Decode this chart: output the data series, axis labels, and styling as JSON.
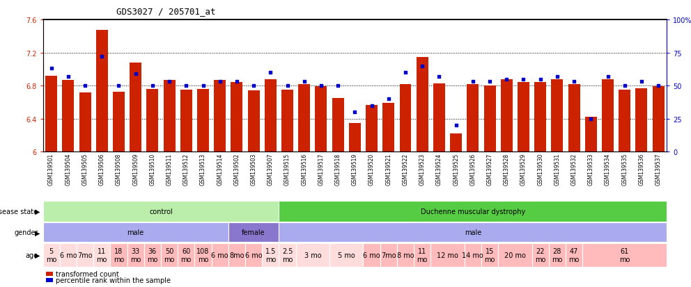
{
  "title": "GDS3027 / 205701_at",
  "samples": [
    "GSM139501",
    "GSM139504",
    "GSM139505",
    "GSM139506",
    "GSM139508",
    "GSM139509",
    "GSM139510",
    "GSM139511",
    "GSM139512",
    "GSM139513",
    "GSM139514",
    "GSM139502",
    "GSM139503",
    "GSM139507",
    "GSM139515",
    "GSM139516",
    "GSM139517",
    "GSM139518",
    "GSM139519",
    "GSM139520",
    "GSM139521",
    "GSM139522",
    "GSM139523",
    "GSM139524",
    "GSM139525",
    "GSM139526",
    "GSM139527",
    "GSM139528",
    "GSM139529",
    "GSM139530",
    "GSM139531",
    "GSM139532",
    "GSM139533",
    "GSM139534",
    "GSM139535",
    "GSM139536",
    "GSM139537"
  ],
  "bar_values": [
    6.92,
    6.87,
    6.72,
    7.47,
    6.73,
    7.08,
    6.76,
    6.87,
    6.75,
    6.76,
    6.87,
    6.84,
    6.74,
    6.88,
    6.75,
    6.82,
    6.79,
    6.65,
    6.35,
    6.57,
    6.59,
    6.82,
    7.15,
    6.83,
    6.22,
    6.82,
    6.8,
    6.88,
    6.84,
    6.84,
    6.88,
    6.82,
    6.42,
    6.88,
    6.75,
    6.77,
    6.79
  ],
  "percentile_values": [
    63,
    57,
    50,
    72,
    50,
    59,
    50,
    53,
    50,
    50,
    53,
    53,
    50,
    60,
    50,
    53,
    50,
    50,
    30,
    35,
    40,
    60,
    65,
    57,
    20,
    53,
    53,
    55,
    55,
    55,
    57,
    53,
    25,
    57,
    50,
    53,
    50
  ],
  "ylim": [
    6.0,
    7.6
  ],
  "yticks": [
    6.0,
    6.4,
    6.8,
    7.2,
    7.6
  ],
  "ytick_labels": [
    "6",
    "6.4",
    "6.8",
    "7.2",
    "7.6"
  ],
  "right_yticks": [
    0,
    25,
    50,
    75,
    100
  ],
  "right_ytick_labels": [
    "0",
    "25",
    "50",
    "75",
    "100%"
  ],
  "bar_color": "#cc2200",
  "dot_color": "#0000cc",
  "bg_color": "#ffffff",
  "left_label_color": "#cc2200",
  "right_label_color": "#0000cc",
  "disease_segs": [
    {
      "label": "control",
      "start": 0,
      "end": 13,
      "color": "#bbeeaa"
    },
    {
      "label": "Duchenne muscular dystrophy",
      "start": 14,
      "end": 36,
      "color": "#55cc44"
    }
  ],
  "gender_segs": [
    {
      "label": "male",
      "start": 0,
      "end": 10,
      "color": "#aaaaee"
    },
    {
      "label": "female",
      "start": 11,
      "end": 13,
      "color": "#8877cc"
    },
    {
      "label": "male",
      "start": 14,
      "end": 36,
      "color": "#aaaaee"
    }
  ],
  "age_data": [
    {
      "label": "5\nmo",
      "start": 0,
      "end": 0,
      "color": "#ffdddd"
    },
    {
      "label": "6 mo",
      "start": 1,
      "end": 1,
      "color": "#ffdddd"
    },
    {
      "label": "7mo",
      "start": 2,
      "end": 2,
      "color": "#ffdddd"
    },
    {
      "label": "11\nmo",
      "start": 3,
      "end": 3,
      "color": "#ffdddd"
    },
    {
      "label": "18\nmo",
      "start": 4,
      "end": 4,
      "color": "#ffbbbb"
    },
    {
      "label": "33\nmo",
      "start": 5,
      "end": 5,
      "color": "#ffbbbb"
    },
    {
      "label": "36\nmo",
      "start": 6,
      "end": 6,
      "color": "#ffbbbb"
    },
    {
      "label": "50\nmo",
      "start": 7,
      "end": 7,
      "color": "#ffbbbb"
    },
    {
      "label": "60\nmo",
      "start": 8,
      "end": 8,
      "color": "#ffbbbb"
    },
    {
      "label": "108\nmo",
      "start": 9,
      "end": 9,
      "color": "#ffbbbb"
    },
    {
      "label": "6 mo",
      "start": 10,
      "end": 10,
      "color": "#ffbbbb"
    },
    {
      "label": "8mo",
      "start": 11,
      "end": 11,
      "color": "#ffbbbb"
    },
    {
      "label": "6 mo",
      "start": 12,
      "end": 12,
      "color": "#ffbbbb"
    },
    {
      "label": "1.5\nmo",
      "start": 13,
      "end": 13,
      "color": "#ffdddd"
    },
    {
      "label": "2.5\nmo",
      "start": 14,
      "end": 14,
      "color": "#ffdddd"
    },
    {
      "label": "3 mo",
      "start": 15,
      "end": 16,
      "color": "#ffdddd"
    },
    {
      "label": "5 mo",
      "start": 17,
      "end": 18,
      "color": "#ffdddd"
    },
    {
      "label": "6 mo",
      "start": 19,
      "end": 19,
      "color": "#ffbbbb"
    },
    {
      "label": "7mo",
      "start": 20,
      "end": 20,
      "color": "#ffbbbb"
    },
    {
      "label": "8 mo",
      "start": 21,
      "end": 21,
      "color": "#ffbbbb"
    },
    {
      "label": "11\nmo",
      "start": 22,
      "end": 22,
      "color": "#ffbbbb"
    },
    {
      "label": "12 mo",
      "start": 23,
      "end": 24,
      "color": "#ffbbbb"
    },
    {
      "label": "14 mo",
      "start": 25,
      "end": 25,
      "color": "#ffbbbb"
    },
    {
      "label": "15\nmo",
      "start": 26,
      "end": 26,
      "color": "#ffbbbb"
    },
    {
      "label": "20 mo",
      "start": 27,
      "end": 28,
      "color": "#ffbbbb"
    },
    {
      "label": "22\nmo",
      "start": 29,
      "end": 29,
      "color": "#ffbbbb"
    },
    {
      "label": "28\nmo",
      "start": 30,
      "end": 30,
      "color": "#ffbbbb"
    },
    {
      "label": "47\nmo",
      "start": 31,
      "end": 31,
      "color": "#ffbbbb"
    },
    {
      "label": "61\nmo",
      "start": 32,
      "end": 36,
      "color": "#ffbbbb"
    }
  ]
}
